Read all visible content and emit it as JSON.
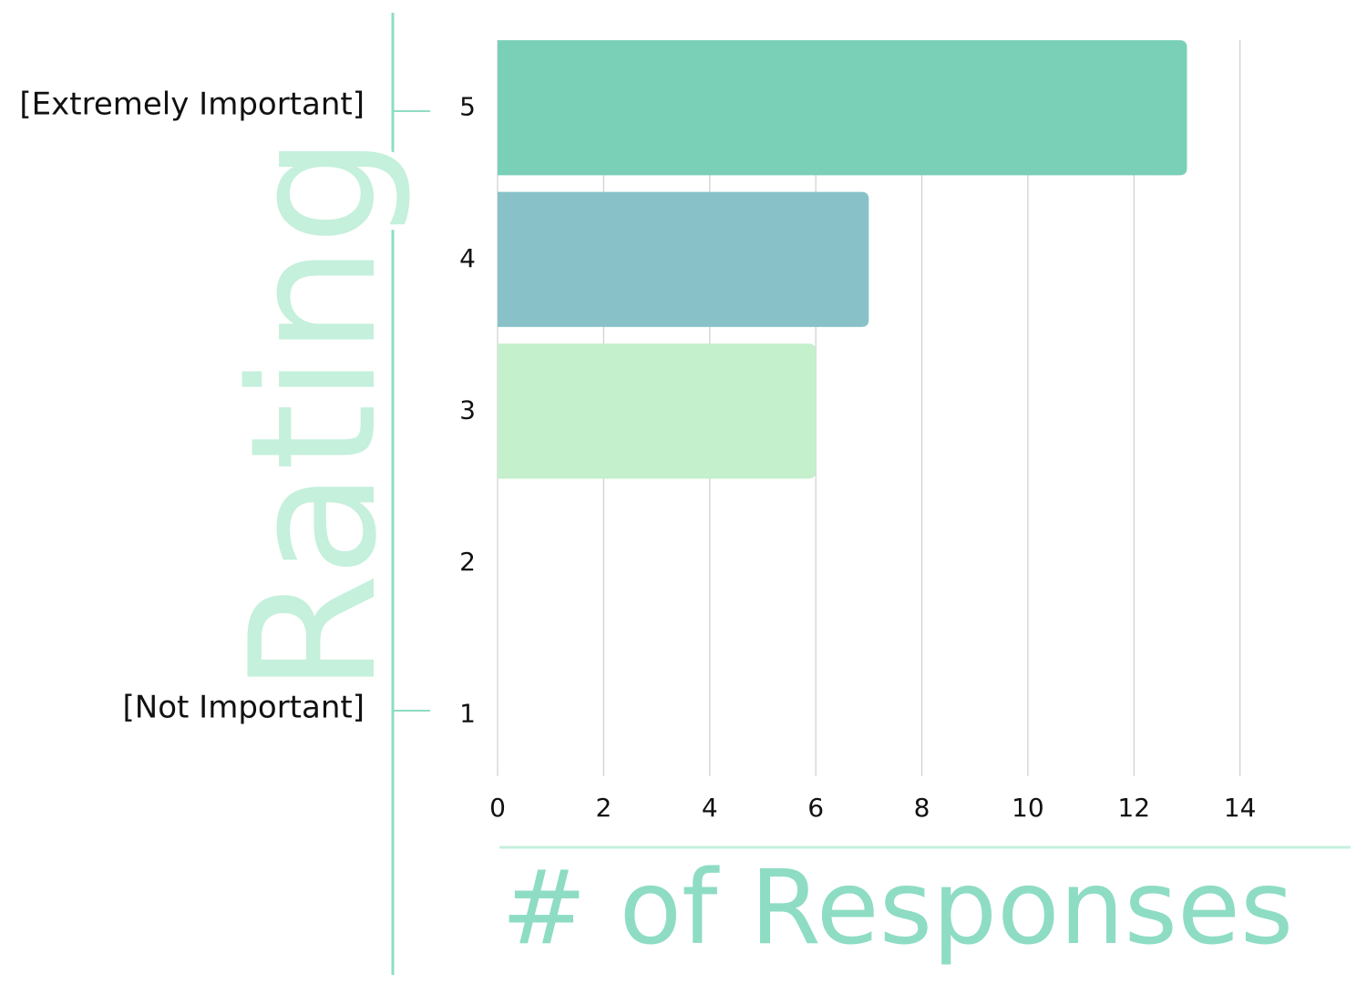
{
  "chart_data": {
    "type": "bar",
    "orientation": "horizontal",
    "categories": [
      "5",
      "4",
      "3",
      "2",
      "1"
    ],
    "values": [
      13,
      7,
      6,
      0,
      0
    ],
    "colors": [
      "#7ad0b6",
      "#88c2c8",
      "#c4f0cc"
    ],
    "xlim": [
      0,
      16
    ],
    "xticks": [
      0,
      2,
      4,
      6,
      8,
      10,
      12,
      14
    ],
    "grid": true,
    "xlabel": "# of Responses",
    "ylabel": "Rating",
    "annotations": [
      "[Extremely Important]",
      "[Not Important]"
    ]
  }
}
